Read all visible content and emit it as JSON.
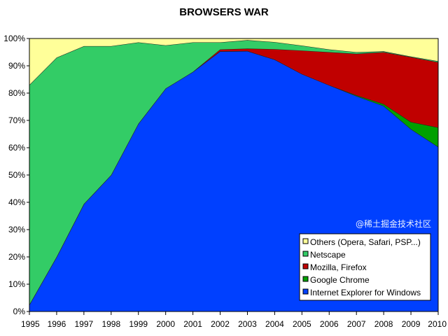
{
  "chart_data": {
    "type": "area",
    "stacked": true,
    "normalized_percent": true,
    "title": "BROWSERS WAR",
    "xlabel": "",
    "ylabel": "",
    "categories": [
      "1995",
      "1996",
      "1997",
      "1998",
      "1999",
      "2000",
      "2001",
      "2002",
      "2003",
      "2004",
      "2005",
      "2006",
      "2007",
      "2008",
      "2009",
      "2010"
    ],
    "ylim": [
      0,
      100
    ],
    "yticks": [
      "0%",
      "10%",
      "20%",
      "30%",
      "40%",
      "50%",
      "60%",
      "70%",
      "80%",
      "90%",
      "100%"
    ],
    "grid": false,
    "legend_position": "bottom-right",
    "series": [
      {
        "name": "Internet Explorer for Windows",
        "color": "#0040FF",
        "values": [
          2.5,
          20,
          39.4,
          50,
          68.8,
          81.7,
          87.8,
          95.3,
          95.4,
          92.3,
          87,
          82.9,
          78.9,
          75.3,
          66.8,
          60.3
        ]
      },
      {
        "name": "Google Chrome",
        "color": "#00A000",
        "values": [
          0,
          0,
          0,
          0,
          0,
          0,
          0,
          0,
          0,
          0,
          0,
          0,
          0.3,
          0.7,
          2.6,
          7.1
        ]
      },
      {
        "name": "Mozilla, Firefox",
        "color": "#C00000",
        "values": [
          0,
          0,
          0,
          0,
          0,
          0,
          0,
          0.7,
          0.9,
          3.8,
          8.6,
          12.1,
          15.2,
          19.0,
          23.8,
          23.9
        ]
      },
      {
        "name": "Netscape",
        "color": "#33CC66",
        "values": [
          80.5,
          73,
          57.8,
          47.2,
          29.8,
          15.8,
          10.8,
          2.6,
          3.1,
          2.6,
          1.8,
          1.0,
          0.6,
          0.3,
          0.2,
          0.4
        ]
      },
      {
        "name": "Others (Opera, Safari, PSP...)",
        "color": "#FFFF99",
        "values": [
          17,
          7,
          2.8,
          2.8,
          1.4,
          2.5,
          1.4,
          1.4,
          0.6,
          1.3,
          2.6,
          4.0,
          5.0,
          4.7,
          6.6,
          8.3
        ]
      }
    ],
    "legend_order": [
      "Others (Opera, Safari, PSP...)",
      "Netscape",
      "Mozilla, Firefox",
      "Google Chrome",
      "Internet Explorer for Windows"
    ]
  },
  "watermark": "@稀土掘金技术社区"
}
